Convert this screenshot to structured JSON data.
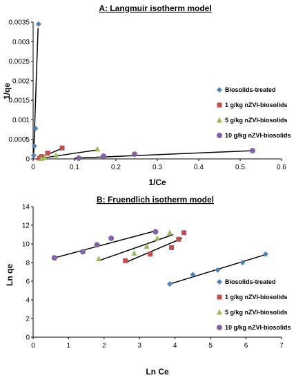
{
  "chart_data": [
    {
      "type": "scatter",
      "title": "A: Langmuir isotherm model",
      "xlabel": "1/Ce",
      "ylabel": "1/qe",
      "xlim": [
        0,
        0.6
      ],
      "ylim": [
        0,
        0.0035
      ],
      "xticks": [
        "0",
        "0.1",
        "0.2",
        "0.3",
        "0.4",
        "0.5",
        "0.6"
      ],
      "yticks": [
        "0",
        "0.0005",
        "0.001",
        "0.0015",
        "0.002",
        "0.0025",
        "0.003",
        "0.0035"
      ],
      "legend_position": "right",
      "series": [
        {
          "name": "Biosolids-treated",
          "marker": "diamond",
          "color": "#4f81bd",
          "x": [
            0.0015,
            0.003,
            0.006,
            0.013
          ],
          "y": [
            9e-05,
            0.00033,
            0.00078,
            0.00345
          ],
          "fit": [
            [
              0.001,
              2e-05
            ],
            [
              0.012,
              0.00335
            ]
          ]
        },
        {
          "name": "1 g/kg nZVI-biosolids",
          "marker": "square",
          "color": "#c0504d",
          "x": [
            0.015,
            0.02,
            0.035,
            0.07
          ],
          "y": [
            2e-05,
            6e-05,
            0.00015,
            0.00028
          ],
          "fit": [
            [
              0.012,
              1e-05
            ],
            [
              0.07,
              0.00027
            ]
          ]
        },
        {
          "name": "5 g/kg nZVI-biosolids",
          "marker": "triangle",
          "color": "#9bbb59",
          "x": [
            0.02,
            0.028,
            0.055,
            0.155
          ],
          "y": [
            1e-05,
            3e-05,
            9e-05,
            0.00025
          ],
          "fit": [
            [
              0.015,
              1e-05
            ],
            [
              0.155,
              0.00023
            ]
          ]
        },
        {
          "name": "10 g/kg nZVI-biosolids",
          "marker": "circle",
          "color": "#8064a2",
          "x": [
            0.11,
            0.17,
            0.245,
            0.53
          ],
          "y": [
            2e-05,
            7e-05,
            0.00012,
            0.00021
          ],
          "fit": [
            [
              0.1,
              2e-05
            ],
            [
              0.53,
              0.00021
            ]
          ]
        }
      ]
    },
    {
      "type": "scatter",
      "title": "B: Fruendlich isotherm model",
      "xlabel": "Ln Ce",
      "ylabel": "Ln qe",
      "xlim": [
        0,
        7
      ],
      "ylim": [
        0,
        14
      ],
      "xticks": [
        "0",
        "1",
        "2",
        "3",
        "4",
        "5",
        "6",
        "7"
      ],
      "yticks": [
        "0",
        "2",
        "4",
        "6",
        "8",
        "10",
        "12",
        "14"
      ],
      "legend_position": "bottom-right",
      "series": [
        {
          "name": "Biosolids-treated",
          "marker": "diamond",
          "color": "#4f81bd",
          "x": [
            3.85,
            4.5,
            5.2,
            5.9,
            6.55
          ],
          "y": [
            5.7,
            6.7,
            7.2,
            8.0,
            8.9
          ],
          "fit": [
            [
              3.85,
              5.7
            ],
            [
              6.55,
              8.85
            ]
          ]
        },
        {
          "name": "1 g/kg nZVI-biosolids",
          "marker": "square",
          "color": "#c0504d",
          "x": [
            2.6,
            3.3,
            3.9,
            4.1,
            4.25
          ],
          "y": [
            8.2,
            8.9,
            9.6,
            10.5,
            11.2
          ],
          "fit": [
            [
              2.6,
              8.0
            ],
            [
              4.2,
              10.6
            ]
          ]
        },
        {
          "name": "5 g/kg nZVI-biosolids",
          "marker": "triangle",
          "color": "#9bbb59",
          "x": [
            1.85,
            2.85,
            3.2,
            3.5,
            3.85
          ],
          "y": [
            8.4,
            9.0,
            9.75,
            10.6,
            11.2
          ],
          "fit": [
            [
              1.85,
              8.2
            ],
            [
              3.95,
              11.0
            ]
          ]
        },
        {
          "name": "10 g/kg nZVI-biosolids",
          "marker": "circle",
          "color": "#8064a2",
          "x": [
            0.6,
            1.4,
            1.8,
            2.2,
            3.45
          ],
          "y": [
            8.5,
            9.15,
            9.9,
            10.6,
            11.3
          ],
          "fit": [
            [
              0.6,
              8.5
            ],
            [
              3.45,
              11.4
            ]
          ]
        }
      ]
    }
  ]
}
